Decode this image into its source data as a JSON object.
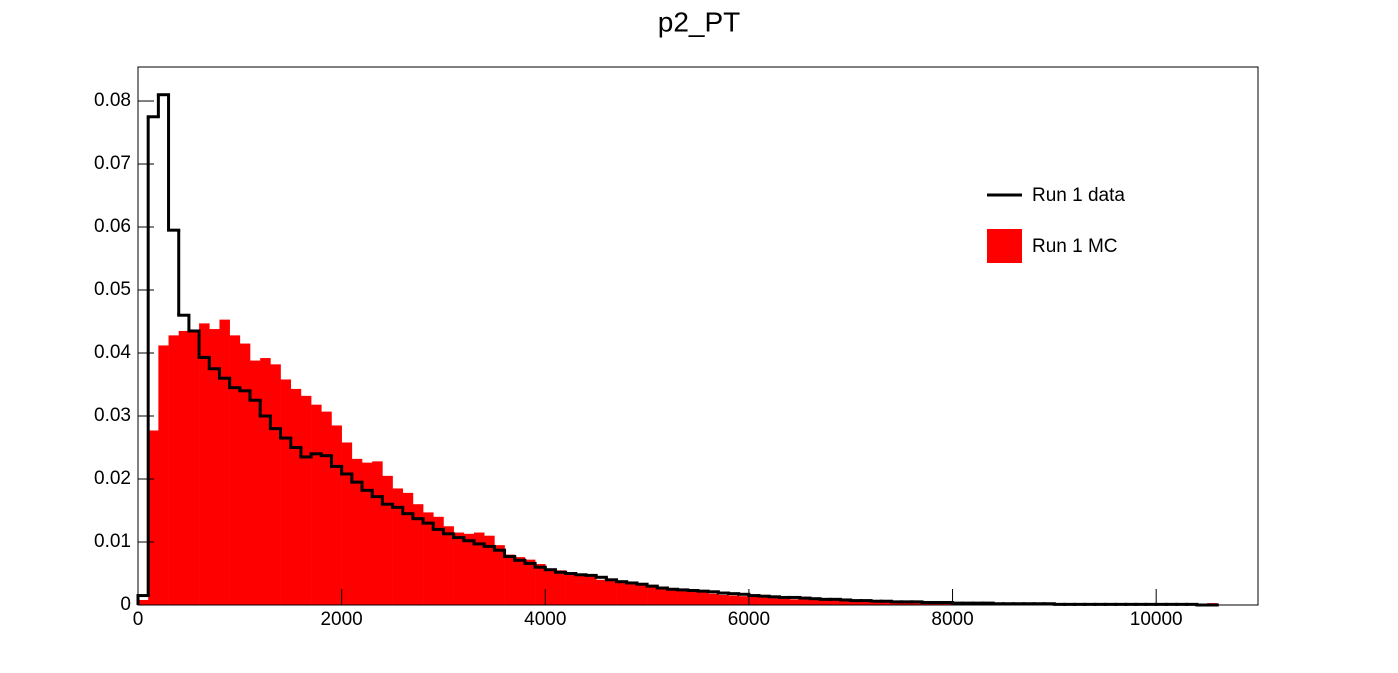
{
  "chart_data": {
    "type": "histogram",
    "title": "p2_PT",
    "bins": [
      0,
      100,
      200,
      300,
      400,
      500,
      600,
      700,
      800,
      900,
      1000,
      1100,
      1200,
      1300,
      1400,
      1500,
      1600,
      1700,
      1800,
      1900,
      2000,
      2100,
      2200,
      2300,
      2400,
      2500,
      2600,
      2700,
      2800,
      2900,
      3000,
      3100,
      3200,
      3300,
      3400,
      3500,
      3600,
      3700,
      3800,
      3900,
      4000,
      4100,
      4200,
      4300,
      4400,
      4500,
      4600,
      4700,
      4800,
      4900,
      5000,
      5100,
      5200,
      5300,
      5400,
      5500,
      5600,
      5700,
      5800,
      5900,
      6000,
      6100,
      6200,
      6300,
      6400,
      6500,
      6600,
      6700,
      6800,
      6900,
      7000,
      7100,
      7200,
      7300,
      7400,
      7500,
      7600,
      7700,
      7800,
      7900,
      8000,
      8100,
      8200,
      8300,
      8400,
      8500,
      8600,
      8700,
      8800,
      8900,
      9000,
      9100,
      9200,
      9300,
      9400,
      9500,
      9600,
      9700,
      9800,
      9900,
      10000,
      10100,
      10200,
      10300,
      10400,
      10500,
      10600
    ],
    "series": [
      {
        "name": "Run 1 data",
        "color": "#000000",
        "histtype": "step",
        "values": [
          0.0015,
          0.0775,
          0.081,
          0.0595,
          0.046,
          0.0435,
          0.0393,
          0.0375,
          0.036,
          0.0345,
          0.034,
          0.0325,
          0.03,
          0.028,
          0.0265,
          0.025,
          0.0235,
          0.024,
          0.0237,
          0.022,
          0.0208,
          0.0195,
          0.0182,
          0.0172,
          0.016,
          0.0155,
          0.0145,
          0.0137,
          0.013,
          0.012,
          0.0113,
          0.0107,
          0.0102,
          0.0097,
          0.0093,
          0.0087,
          0.0077,
          0.0071,
          0.0066,
          0.006,
          0.0056,
          0.0052,
          0.005,
          0.0048,
          0.0047,
          0.0044,
          0.004,
          0.0037,
          0.0035,
          0.0033,
          0.003,
          0.0027,
          0.0025,
          0.0024,
          0.0023,
          0.0022,
          0.0021,
          0.0019,
          0.0018,
          0.0017,
          0.0015,
          0.0014,
          0.0013,
          0.0012,
          0.0012,
          0.0011,
          0.001,
          0.0009,
          0.0009,
          0.0008,
          0.0007,
          0.0007,
          0.0006,
          0.0006,
          0.0005,
          0.0005,
          0.0005,
          0.0004,
          0.0004,
          0.0004,
          0.0003,
          0.0003,
          0.0003,
          0.0003,
          0.0002,
          0.0002,
          0.0002,
          0.0002,
          0.0002,
          0.0002,
          0.0001,
          0.0001,
          0.0001,
          0.0001,
          0.0001,
          0.0001,
          0.0001,
          0.0001,
          0.0001,
          0.0001,
          0.0001,
          0.0001,
          0.0001,
          0.0001,
          0,
          0
        ]
      },
      {
        "name": "Run 1 MC",
        "color": "#ff0000",
        "histtype": "bar",
        "values": [
          0.0008,
          0.0277,
          0.0412,
          0.0428,
          0.0435,
          0.0435,
          0.0447,
          0.0438,
          0.0453,
          0.0428,
          0.0415,
          0.0388,
          0.0392,
          0.0382,
          0.0358,
          0.0343,
          0.0332,
          0.0318,
          0.0307,
          0.0285,
          0.0258,
          0.0232,
          0.0226,
          0.0228,
          0.0205,
          0.0185,
          0.0178,
          0.016,
          0.0147,
          0.014,
          0.0125,
          0.0115,
          0.0113,
          0.0115,
          0.011,
          0.0095,
          0.008,
          0.0076,
          0.0072,
          0.0065,
          0.0058,
          0.0055,
          0.0052,
          0.005,
          0.0045,
          0.004,
          0.0038,
          0.0035,
          0.0033,
          0.0032,
          0.003,
          0.0027,
          0.0025,
          0.0024,
          0.0022,
          0.002,
          0.0018,
          0.0016,
          0.0015,
          0.0014,
          0.0013,
          0.0012,
          0.0011,
          0.001,
          0.0009,
          0.0009,
          0.0008,
          0.0008,
          0.0008,
          0.0007,
          0.0006,
          0.0005,
          0.0005,
          0.0004,
          0.0004,
          0.0004,
          0.0003,
          0.0003,
          0.0003,
          0.0003,
          0.0002,
          0.0002,
          0.0002,
          0.0002,
          0.0002,
          0.0001,
          0.0001,
          0.0001,
          0.0001,
          0.0001,
          0.0001,
          0.0001,
          0.0001,
          0.0001,
          0.0001,
          0.0001,
          0.0001,
          0.0001,
          0.0001,
          0.0001,
          0.0001,
          0.0001,
          0.0001,
          0.0001,
          0.0001,
          0.0003
        ]
      }
    ],
    "xlim": [
      0,
      11000
    ],
    "ylim": [
      0,
      0.0854
    ],
    "xticks": [
      0,
      2000,
      4000,
      6000,
      8000,
      10000
    ],
    "yticks": [
      0,
      0.01,
      0.02,
      0.03,
      0.04,
      0.05,
      0.06,
      0.07,
      0.08
    ],
    "legend": "top-right"
  }
}
